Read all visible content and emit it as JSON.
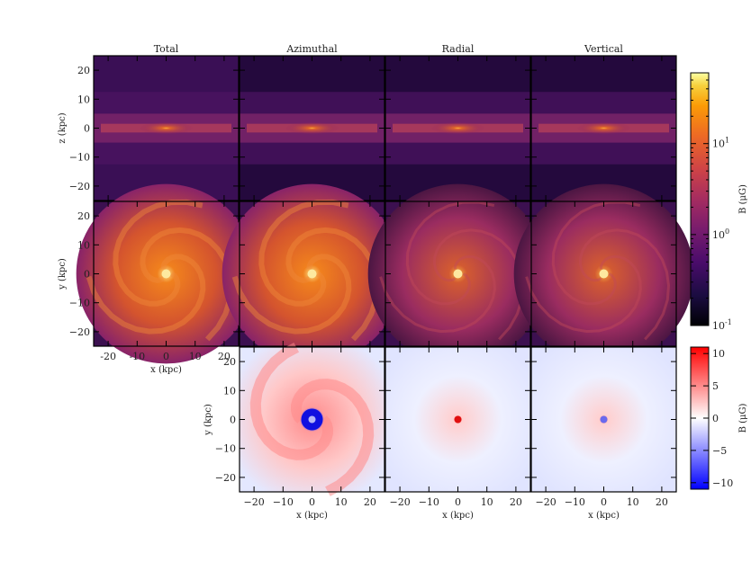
{
  "figure": {
    "column_titles": [
      "Total",
      "Azimuthal",
      "Radial",
      "Vertical"
    ],
    "row_ylabels": [
      "z (kpc)",
      "y (kpc)",
      "y (kpc)"
    ],
    "xlabel": "x (kpc)",
    "colorbar_magnitude": {
      "label": "B (μG)",
      "tick_labels": [
        "10^-1",
        "10^0",
        "10^1"
      ],
      "colormap": "inferno"
    },
    "colorbar_signed": {
      "label": "B (μG)",
      "tick_labels": [
        "−10",
        "−5",
        "0",
        "5",
        "10"
      ],
      "colormap": "bwr"
    }
  },
  "chart_data": [
    {
      "type": "heatmap",
      "panel": "edge-on magnitude",
      "row": 1,
      "columns": [
        "Total",
        "Azimuthal",
        "Radial",
        "Vertical"
      ],
      "xlabel": "",
      "ylabel": "z (kpc)",
      "xlim": [
        -25,
        25
      ],
      "ylim": [
        -25,
        25
      ],
      "yticks": [
        -20,
        -10,
        0,
        10,
        20
      ],
      "color_scale": "log",
      "clim": [
        0.1,
        60
      ],
      "colormap": "inferno"
    },
    {
      "type": "heatmap",
      "panel": "face-on magnitude",
      "row": 2,
      "columns": [
        "Total",
        "Azimuthal",
        "Radial",
        "Vertical"
      ],
      "xlabel": "x (kpc)",
      "ylabel": "y (kpc)",
      "xlim": [
        -25,
        25
      ],
      "ylim": [
        -25,
        25
      ],
      "xticks": [
        -20,
        -10,
        0,
        10,
        20
      ],
      "xtick_labels": [
        "-20",
        "-10",
        "0",
        "10",
        "20"
      ],
      "yticks": [
        -20,
        -10,
        0,
        10,
        20
      ],
      "color_scale": "log",
      "clim": [
        0.1,
        60
      ],
      "colormap": "inferno"
    },
    {
      "type": "heatmap",
      "panel": "face-on signed",
      "row": 3,
      "columns": [
        "Azimuthal",
        "Radial",
        "Vertical"
      ],
      "xlabel": "x (kpc)",
      "ylabel": "y (kpc)",
      "xlim": [
        -25,
        25
      ],
      "ylim": [
        -25,
        25
      ],
      "xticks": [
        -20,
        -10,
        0,
        10,
        20
      ],
      "xtick_labels": [
        "−20",
        "−10",
        "0",
        "10",
        "20"
      ],
      "yticks": [
        -20,
        -10,
        0,
        10,
        20
      ],
      "color_scale": "linear",
      "clim": [
        -11,
        11
      ],
      "colormap": "bwr"
    }
  ]
}
